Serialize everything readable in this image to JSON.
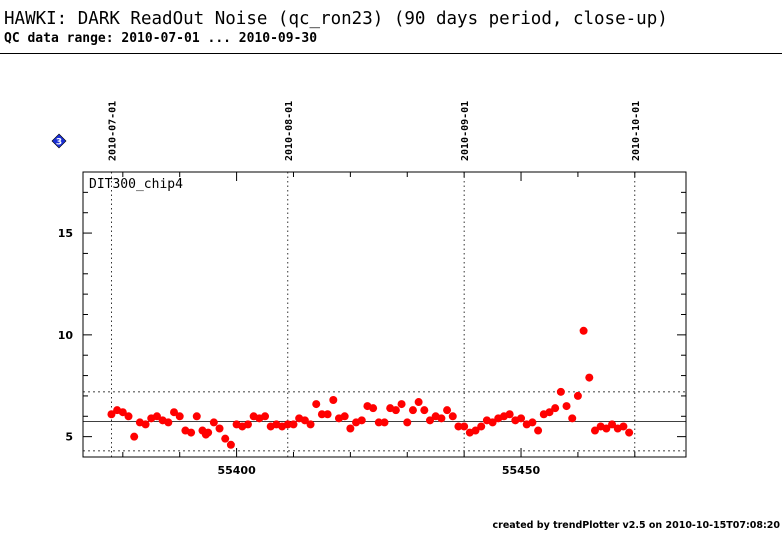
{
  "header": {
    "title": "HAWKI: DARK ReadOut Noise (qc_ron23) (90 days period, close-up)",
    "subtitle": "QC data range: 2010-07-01 ... 2010-09-30"
  },
  "badge": {
    "label": "3",
    "icon": "diamond-number-icon",
    "color": "#1a2fd6"
  },
  "footer": {
    "text": "created by trendPlotter v2.5 on 2010-10-15T07:08:20"
  },
  "colors": {
    "points": "#ff0000",
    "lines": "#000000"
  },
  "chart_data": {
    "type": "scatter",
    "panel_label": "DIT300_chip4",
    "xlim": [
      55373,
      55479
    ],
    "ylim": [
      4,
      18
    ],
    "xticks": [
      55400,
      55450
    ],
    "xtick_labels": [
      "55400",
      "55450"
    ],
    "yticks": [
      5,
      10,
      15
    ],
    "ytick_labels": [
      "5",
      "10",
      "15"
    ],
    "x_minor_step": 10,
    "y_minor_step": 1,
    "date_markers": [
      {
        "x": 55378,
        "label": "2010-07-01"
      },
      {
        "x": 55409,
        "label": "2010-08-01"
      },
      {
        "x": 55440,
        "label": "2010-09-01"
      },
      {
        "x": 55470,
        "label": "2010-10-01"
      }
    ],
    "reference_lines": {
      "mean": 5.75,
      "upper": 7.2,
      "lower": 4.3
    },
    "series": [
      {
        "x": [
          55378,
          55379,
          55380,
          55381,
          55382,
          55383,
          55384,
          55385,
          55386,
          55387,
          55388,
          55389,
          55390,
          55391,
          55392,
          55393,
          55394,
          55394.6,
          55395,
          55396,
          55397,
          55398,
          55399,
          55400,
          55401,
          55402,
          55403,
          55404,
          55405,
          55406,
          55407,
          55408,
          55409,
          55410,
          55411,
          55412,
          55413,
          55414,
          55415,
          55416,
          55417,
          55418,
          55419,
          55420,
          55421,
          55422,
          55423,
          55424,
          55425,
          55426,
          55427,
          55428,
          55429,
          55430,
          55431,
          55432,
          55433,
          55434,
          55435,
          55436,
          55437,
          55438,
          55439,
          55440,
          55441,
          55442,
          55443,
          55444,
          55445,
          55446,
          55447,
          55448,
          55449,
          55450,
          55451,
          55452,
          55453,
          55454,
          55455,
          55456,
          55457,
          55458,
          55459,
          55460,
          55461,
          55462,
          55463,
          55464,
          55465,
          55466,
          55467,
          55468,
          55469
        ],
        "y": [
          6.1,
          6.3,
          6.2,
          6.0,
          5.0,
          5.7,
          5.6,
          5.9,
          6.0,
          5.8,
          5.7,
          6.2,
          6.0,
          5.3,
          5.2,
          6.0,
          5.3,
          5.1,
          5.2,
          5.7,
          5.4,
          4.9,
          4.6,
          5.6,
          5.5,
          5.6,
          6.0,
          5.9,
          6.0,
          5.5,
          5.6,
          5.5,
          5.6,
          5.6,
          5.9,
          5.8,
          5.6,
          6.6,
          6.1,
          6.1,
          6.8,
          5.9,
          6.0,
          5.4,
          5.7,
          5.8,
          6.5,
          6.4,
          5.7,
          5.7,
          6.4,
          6.3,
          6.6,
          5.7,
          6.3,
          6.7,
          6.3,
          5.8,
          6.0,
          5.9,
          6.3,
          6.0,
          5.5,
          5.5,
          5.2,
          5.3,
          5.5,
          5.8,
          5.7,
          5.9,
          6.0,
          6.1,
          5.8,
          5.9,
          5.6,
          5.7,
          5.3,
          6.1,
          6.2,
          6.4,
          7.2,
          6.5,
          5.9,
          7.0,
          10.2,
          7.9,
          5.3,
          5.5,
          5.4,
          5.6,
          5.4,
          5.5,
          5.2
        ]
      }
    ]
  }
}
